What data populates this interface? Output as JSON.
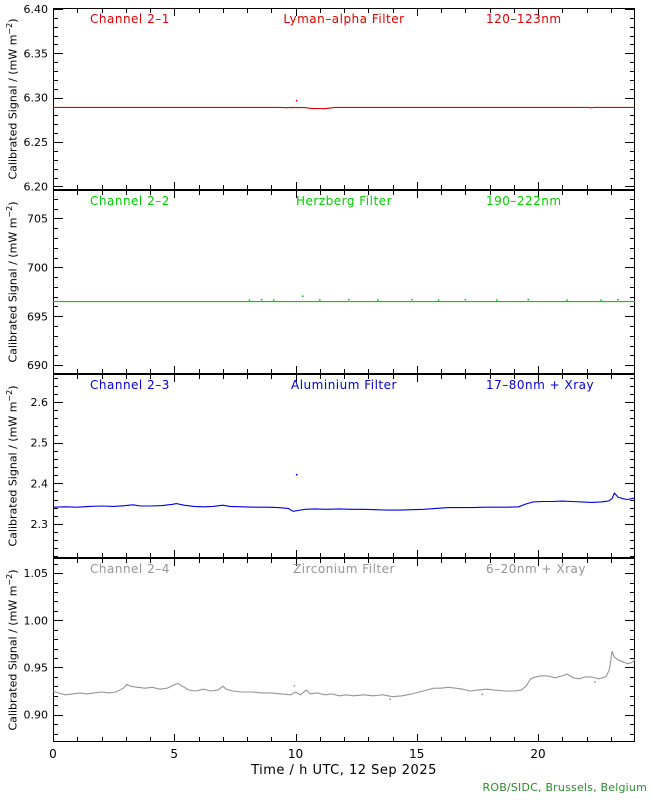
{
  "figure": {
    "xaxis_title": "Time / h UTC, 12 Sep 2025",
    "credit": "ROB/SIDC, Brussels, Belgium",
    "credit_color": "#2e8b2e",
    "axis_color": "#000000",
    "background": "#ffffff"
  },
  "axis": {
    "ylabel_main": "Calibrated Signal / (mW m",
    "ylabel_sup": "−2",
    "ylabel_end": ")"
  },
  "chart_data": [
    {
      "type": "line",
      "channel": "Channel 2–1",
      "filter": "Lyman–alpha Filter",
      "range": "120–123nm",
      "color": "#dd0000",
      "xlim": [
        0,
        24
      ],
      "xticks": [
        0,
        5,
        10,
        15,
        20
      ],
      "xtick_labels": [
        "0",
        "5",
        "10",
        "15",
        "20"
      ],
      "xminor": 1,
      "ylim": [
        6.196,
        6.401
      ],
      "yticks": [
        6.2,
        6.25,
        6.3,
        6.35,
        6.4
      ],
      "ytick_labels": [
        "6.20",
        "6.25",
        "6.30",
        "6.35",
        "6.40"
      ],
      "yminor": 0.01,
      "ylabel": "Calibrated Signal / (mW m-2)",
      "points": [
        [
          0,
          6.289
        ],
        [
          2,
          6.289
        ],
        [
          4,
          6.289
        ],
        [
          6,
          6.289
        ],
        [
          8,
          6.289
        ],
        [
          9.4,
          6.289
        ],
        [
          9.6,
          6.2887
        ],
        [
          9.8,
          6.289
        ],
        [
          10.4,
          6.2888
        ],
        [
          10.6,
          6.288
        ],
        [
          10.8,
          6.2877
        ],
        [
          11,
          6.2878
        ],
        [
          11.2,
          6.2876
        ],
        [
          11.4,
          6.2882
        ],
        [
          11.6,
          6.2888
        ],
        [
          11.8,
          6.289
        ],
        [
          14,
          6.289
        ],
        [
          17,
          6.289
        ],
        [
          20,
          6.289
        ],
        [
          22.1,
          6.289
        ],
        [
          22.2,
          6.2886
        ],
        [
          22.3,
          6.289
        ],
        [
          24,
          6.289
        ]
      ],
      "dots": [
        [
          10.05,
          6.2965
        ]
      ]
    },
    {
      "type": "line",
      "channel": "Channel 2–2",
      "filter": "Herzberg Filter",
      "range": "190–222nm",
      "color": "#00cc00",
      "xlim": [
        0,
        24
      ],
      "xticks": [
        0,
        5,
        10,
        15,
        20
      ],
      "xtick_labels": [
        "0",
        "5",
        "10",
        "15",
        "20"
      ],
      "xminor": 1,
      "ylim": [
        689.1,
        707.9
      ],
      "yticks": [
        690,
        695,
        700,
        705
      ],
      "ytick_labels": [
        "690",
        "695",
        "700",
        "705"
      ],
      "yminor": 1,
      "ylabel": "Calibrated Signal / (mW m-2)",
      "points": [
        [
          0,
          696.5
        ],
        [
          6,
          696.5
        ],
        [
          12,
          696.5
        ],
        [
          18,
          696.5
        ],
        [
          24,
          696.5
        ]
      ],
      "dots": [
        [
          8.1,
          696.65
        ],
        [
          8.6,
          696.7
        ],
        [
          9.1,
          696.65
        ],
        [
          10.3,
          697.05
        ],
        [
          11,
          696.65
        ],
        [
          12.2,
          696.7
        ],
        [
          13.4,
          696.65
        ],
        [
          14.8,
          696.7
        ],
        [
          15.9,
          696.65
        ],
        [
          17,
          696.7
        ],
        [
          18.3,
          696.65
        ],
        [
          19.6,
          696.7
        ],
        [
          21.2,
          696.65
        ],
        [
          22.6,
          696.65
        ],
        [
          23.3,
          696.7
        ]
      ]
    },
    {
      "type": "line",
      "channel": "Channel 2–3",
      "filter": "Aluminium Filter",
      "range": "17–80nm + Xray",
      "color": "#0000dd",
      "xlim": [
        0,
        24
      ],
      "xticks": [
        0,
        5,
        10,
        15,
        20
      ],
      "xtick_labels": [
        "0",
        "5",
        "10",
        "15",
        "20"
      ],
      "xminor": 1,
      "ylim": [
        2.216,
        2.669
      ],
      "yticks": [
        2.3,
        2.4,
        2.5,
        2.6
      ],
      "ytick_labels": [
        "2.3",
        "2.4",
        "2.5",
        "2.6"
      ],
      "yminor": 0.02,
      "ylabel": "Calibrated Signal / (mW m-2)",
      "points": [
        [
          0,
          2.341
        ],
        [
          0.5,
          2.342
        ],
        [
          1,
          2.341
        ],
        [
          1.5,
          2.343
        ],
        [
          2,
          2.344
        ],
        [
          2.5,
          2.343
        ],
        [
          3,
          2.345
        ],
        [
          3.3,
          2.347
        ],
        [
          3.6,
          2.344
        ],
        [
          4,
          2.344
        ],
        [
          4.5,
          2.345
        ],
        [
          4.9,
          2.348
        ],
        [
          5.1,
          2.35
        ],
        [
          5.4,
          2.346
        ],
        [
          5.8,
          2.343
        ],
        [
          6.2,
          2.342
        ],
        [
          6.6,
          2.343
        ],
        [
          7,
          2.346
        ],
        [
          7.3,
          2.343
        ],
        [
          7.8,
          2.342
        ],
        [
          8.3,
          2.341
        ],
        [
          8.8,
          2.341
        ],
        [
          9.3,
          2.34
        ],
        [
          9.7,
          2.338
        ],
        [
          9.9,
          2.331
        ],
        [
          10.1,
          2.333
        ],
        [
          10.4,
          2.336
        ],
        [
          10.8,
          2.337
        ],
        [
          11.3,
          2.336
        ],
        [
          11.8,
          2.337
        ],
        [
          12.3,
          2.336
        ],
        [
          12.8,
          2.336
        ],
        [
          13.3,
          2.335
        ],
        [
          13.8,
          2.334
        ],
        [
          14.3,
          2.334
        ],
        [
          14.8,
          2.335
        ],
        [
          15.3,
          2.336
        ],
        [
          15.8,
          2.338
        ],
        [
          16.3,
          2.34
        ],
        [
          16.8,
          2.34
        ],
        [
          17.3,
          2.34
        ],
        [
          17.8,
          2.341
        ],
        [
          18.3,
          2.341
        ],
        [
          18.8,
          2.341
        ],
        [
          19.2,
          2.342
        ],
        [
          19.5,
          2.349
        ],
        [
          19.8,
          2.354
        ],
        [
          20.2,
          2.355
        ],
        [
          20.6,
          2.355
        ],
        [
          21,
          2.356
        ],
        [
          21.4,
          2.355
        ],
        [
          21.8,
          2.354
        ],
        [
          22.2,
          2.353
        ],
        [
          22.6,
          2.354
        ],
        [
          22.9,
          2.356
        ],
        [
          23.05,
          2.362
        ],
        [
          23.15,
          2.376
        ],
        [
          23.3,
          2.366
        ],
        [
          23.5,
          2.362
        ],
        [
          23.7,
          2.36
        ],
        [
          23.85,
          2.362
        ],
        [
          24,
          2.364
        ]
      ],
      "dots": [
        [
          10.05,
          2.421
        ]
      ]
    },
    {
      "type": "line",
      "channel": "Channel 2–4",
      "filter": "Zirconium Filter",
      "range": "6–20nm + Xray",
      "color": "#969696",
      "xlim": [
        0,
        24
      ],
      "xticks": [
        0,
        5,
        10,
        15,
        20
      ],
      "xtick_labels": [
        "0",
        "5",
        "10",
        "15",
        "20"
      ],
      "xminor": 1,
      "ylim": [
        0.871,
        1.066
      ],
      "yticks": [
        0.9,
        0.95,
        1.0,
        1.05
      ],
      "ytick_labels": [
        "0.90",
        "0.95",
        "1.00",
        "1.05"
      ],
      "yminor": 0.01,
      "ylabel": "Calibrated Signal / (mW m-2)",
      "points": [
        [
          0,
          0.925
        ],
        [
          0.2,
          0.923
        ],
        [
          0.5,
          0.921
        ],
        [
          0.8,
          0.922
        ],
        [
          1.1,
          0.923
        ],
        [
          1.4,
          0.922
        ],
        [
          1.7,
          0.923
        ],
        [
          2,
          0.924
        ],
        [
          2.3,
          0.923
        ],
        [
          2.6,
          0.924
        ],
        [
          2.9,
          0.928
        ],
        [
          3.05,
          0.932
        ],
        [
          3.2,
          0.93
        ],
        [
          3.5,
          0.929
        ],
        [
          3.8,
          0.928
        ],
        [
          4.1,
          0.929
        ],
        [
          4.4,
          0.927
        ],
        [
          4.7,
          0.928
        ],
        [
          4.95,
          0.931
        ],
        [
          5.15,
          0.933
        ],
        [
          5.35,
          0.93
        ],
        [
          5.6,
          0.926
        ],
        [
          5.9,
          0.925
        ],
        [
          6.2,
          0.927
        ],
        [
          6.5,
          0.925
        ],
        [
          6.8,
          0.926
        ],
        [
          7,
          0.93
        ],
        [
          7.15,
          0.927
        ],
        [
          7.4,
          0.925
        ],
        [
          7.8,
          0.924
        ],
        [
          8.2,
          0.924
        ],
        [
          8.6,
          0.923
        ],
        [
          9,
          0.923
        ],
        [
          9.4,
          0.922
        ],
        [
          9.8,
          0.921
        ],
        [
          10,
          0.924
        ],
        [
          10.2,
          0.921
        ],
        [
          10.45,
          0.926
        ],
        [
          10.6,
          0.922
        ],
        [
          10.9,
          0.923
        ],
        [
          11.2,
          0.921
        ],
        [
          11.5,
          0.922
        ],
        [
          11.8,
          0.92
        ],
        [
          12.1,
          0.921
        ],
        [
          12.4,
          0.92
        ],
        [
          12.8,
          0.921
        ],
        [
          13.2,
          0.92
        ],
        [
          13.6,
          0.921
        ],
        [
          14,
          0.919
        ],
        [
          14.4,
          0.92
        ],
        [
          14.8,
          0.922
        ],
        [
          15.1,
          0.924
        ],
        [
          15.4,
          0.926
        ],
        [
          15.7,
          0.928
        ],
        [
          16,
          0.928
        ],
        [
          16.3,
          0.929
        ],
        [
          16.6,
          0.928
        ],
        [
          16.9,
          0.927
        ],
        [
          17.2,
          0.925
        ],
        [
          17.5,
          0.926
        ],
        [
          17.9,
          0.927
        ],
        [
          18.2,
          0.926
        ],
        [
          18.6,
          0.925
        ],
        [
          19,
          0.925
        ],
        [
          19.3,
          0.926
        ],
        [
          19.5,
          0.93
        ],
        [
          19.7,
          0.938
        ],
        [
          19.9,
          0.94
        ],
        [
          20.1,
          0.941
        ],
        [
          20.4,
          0.941
        ],
        [
          20.7,
          0.939
        ],
        [
          21,
          0.941
        ],
        [
          21.2,
          0.943
        ],
        [
          21.45,
          0.939
        ],
        [
          21.7,
          0.938
        ],
        [
          21.95,
          0.94
        ],
        [
          22.2,
          0.94
        ],
        [
          22.5,
          0.938
        ],
        [
          22.8,
          0.94
        ],
        [
          22.95,
          0.948
        ],
        [
          23.05,
          0.967
        ],
        [
          23.15,
          0.961
        ],
        [
          23.3,
          0.958
        ],
        [
          23.5,
          0.956
        ],
        [
          23.7,
          0.954
        ],
        [
          23.85,
          0.955
        ],
        [
          24,
          0.958
        ]
      ],
      "dots": [
        [
          9.95,
          0.9305
        ],
        [
          13.9,
          0.9165
        ],
        [
          17.7,
          0.9215
        ],
        [
          22.35,
          0.9345
        ]
      ]
    }
  ]
}
